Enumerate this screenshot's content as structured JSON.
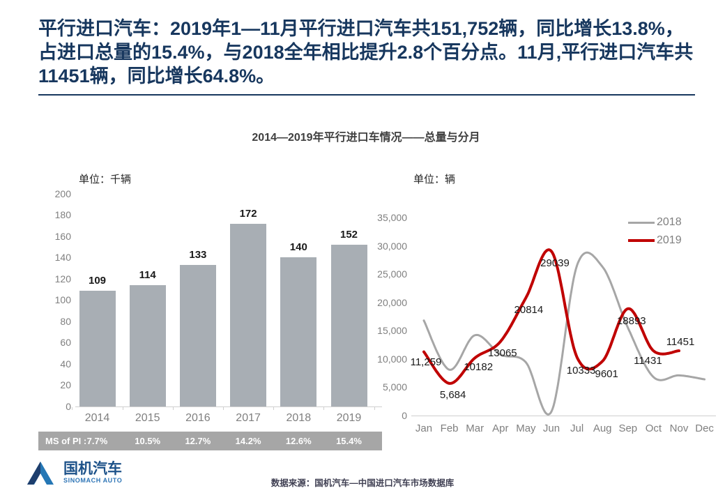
{
  "slide": {
    "title": "平行进口汽车：2019年1—11月平行进口汽车共151,752辆，同比增长13.8%，占进口总量的15.4%，与2018全年相比提升2.8个百分点。11月,平行进口汽车共11451辆，同比增长64.8%。",
    "chart_title": "2014—2019年平行进口车情况——总量与分月",
    "source": "数据来源：国机汽车—中国进口汽车市场数据库",
    "logo": {
      "cn": "国机汽车",
      "en": "SINOMACH AUTO"
    }
  },
  "colors": {
    "title_navy": "#17375e",
    "bar_fill": "#a8aeb4",
    "series_2018": "#a6a6a6",
    "series_2019": "#c00000",
    "axis_text": "#7f7f7f",
    "ms_band_bg": "#a6a6a6",
    "logo_dark_blue": "#1d3e6d",
    "logo_light_blue": "#2577b5"
  },
  "chart_data": [
    {
      "id": "annual-totals",
      "type": "bar",
      "unit_label": "单位：千辆",
      "categories": [
        "2014",
        "2015",
        "2016",
        "2017",
        "2018",
        "2019"
      ],
      "values": [
        109,
        114,
        133,
        172,
        140,
        152
      ],
      "value_labels": [
        "109",
        "114",
        "133",
        "172",
        "140",
        "152"
      ],
      "ylim": [
        0,
        200
      ],
      "y_ticks": [
        0,
        20,
        40,
        60,
        80,
        100,
        120,
        140,
        160,
        180,
        200
      ],
      "grid": false,
      "ms_of_pi_row": {
        "label": "MS of PI :",
        "values": [
          "7.7%",
          "10.5%",
          "12.7%",
          "14.2%",
          "12.6%",
          "15.4%"
        ]
      }
    },
    {
      "id": "monthly-lines",
      "type": "line",
      "unit_label": "单位：辆",
      "x": [
        "Jan",
        "Feb",
        "Mar",
        "Apr",
        "May",
        "Jun",
        "Jul",
        "Aug",
        "Sep",
        "Oct",
        "Nov",
        "Dec"
      ],
      "ylim": [
        0,
        35000
      ],
      "y_ticks": [
        0,
        5000,
        10000,
        15000,
        20000,
        25000,
        30000,
        35000
      ],
      "y_tick_labels": [
        "0",
        "5,000",
        "10,000",
        "15,000",
        "20,000",
        "25,000",
        "30,000",
        "35,000"
      ],
      "grid": false,
      "legend_position": "top-right",
      "series": [
        {
          "name": "2018",
          "values": [
            16800,
            8100,
            14200,
            10800,
            9400,
            700,
            26500,
            26300,
            15500,
            6800,
            7100,
            6400
          ],
          "values_estimated": true
        },
        {
          "name": "2019",
          "values": [
            11259,
            5684,
            10182,
            13065,
            20814,
            29039,
            10333,
            9601,
            18893,
            11431,
            11451
          ],
          "point_labels": [
            "11,259",
            "5,684",
            "10182",
            "13065",
            "20814",
            "29039",
            "10333",
            "9601",
            "18893",
            "11431",
            "11451"
          ]
        }
      ]
    }
  ]
}
